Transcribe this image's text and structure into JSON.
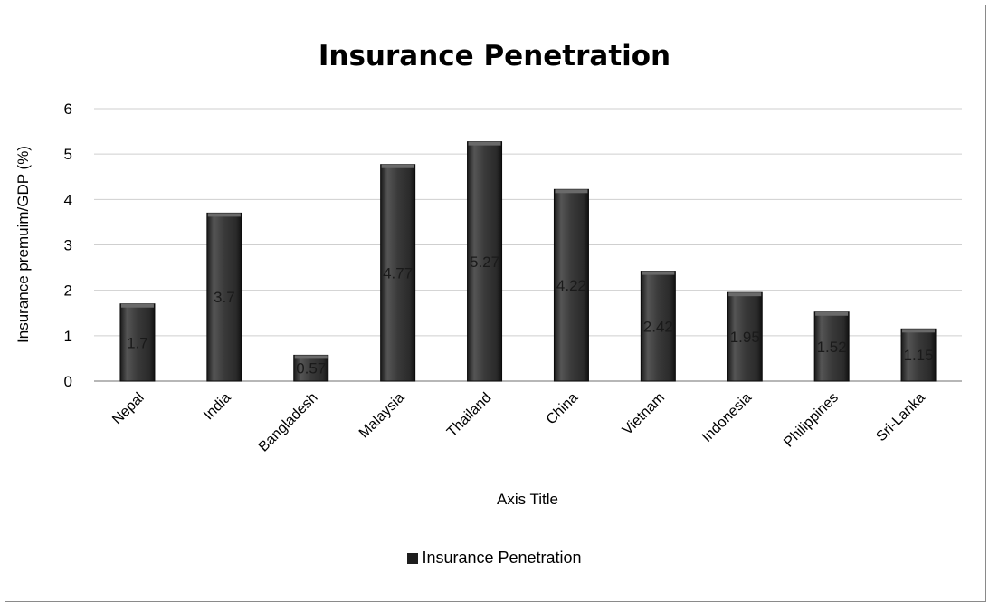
{
  "chart_data": {
    "type": "bar",
    "title": "Insurance Penetration",
    "xlabel": "Axis Title",
    "ylabel": "Insurance premuim/GDP (%)",
    "ylim": [
      0,
      6
    ],
    "yticks": [
      0,
      1,
      2,
      3,
      4,
      5,
      6
    ],
    "grid": true,
    "legend_position": "bottom",
    "categories": [
      "Nepal",
      "India",
      "Bangladesh",
      "Malaysia",
      "Thailand",
      "China",
      "Vietnam",
      "Indonesia",
      "Philippines",
      "Sri-Lanka"
    ],
    "series": [
      {
        "name": "Insurance Penetration",
        "values": [
          1.7,
          3.7,
          0.57,
          4.77,
          5.27,
          4.22,
          2.42,
          1.95,
          1.52,
          1.15
        ],
        "labels": [
          "1.7",
          "3.7",
          "0.57",
          "4.77",
          "5.27",
          "4.22",
          "2.42",
          "1.95",
          "1.52",
          "1.15"
        ],
        "color": "#2e2e2e"
      }
    ]
  }
}
